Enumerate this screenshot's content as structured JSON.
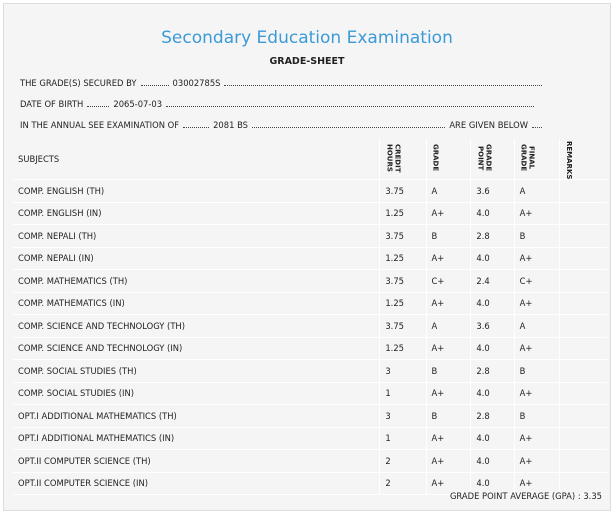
{
  "header": {
    "title": "Secondary Education Examination",
    "subtitle": "GRADE-SHEET"
  },
  "info": {
    "secured_by_label": "THE GRADE(S) SECURED BY",
    "secured_by": "03002785S",
    "dob_label": "DATE OF BIRTH",
    "dob": "2065-07-03",
    "exam_label": "IN THE ANNUAL SEE EXAMINATION OF",
    "exam_year": "2081 BS",
    "exam_suffix": "ARE GIVEN BELOW"
  },
  "table": {
    "columns": [
      "SUBJECTS",
      "CREDIT HOURS",
      "GRADE",
      "GRADE POINT",
      "FINAL GRADE",
      "REMARKS"
    ],
    "rows": [
      [
        "COMP. ENGLISH (TH)",
        "3.75",
        "A",
        "3.6",
        "A"
      ],
      [
        "COMP. ENGLISH (IN)",
        "1.25",
        "A+",
        "4.0",
        "A+"
      ],
      [
        "COMP. NEPALI (TH)",
        "3.75",
        "B",
        "2.8",
        "B"
      ],
      [
        "COMP. NEPALI (IN)",
        "1.25",
        "A+",
        "4.0",
        "A+"
      ],
      [
        "COMP. MATHEMATICS (TH)",
        "3.75",
        "C+",
        "2.4",
        "C+"
      ],
      [
        "COMP. MATHEMATICS (IN)",
        "1.25",
        "A+",
        "4.0",
        "A+"
      ],
      [
        "COMP. SCIENCE AND TECHNOLOGY (TH)",
        "3.75",
        "A",
        "3.6",
        "A"
      ],
      [
        "COMP. SCIENCE AND TECHNOLOGY (IN)",
        "1.25",
        "A+",
        "4.0",
        "A+"
      ],
      [
        "COMP. SOCIAL STUDIES (TH)",
        "3",
        "B",
        "2.8",
        "B"
      ],
      [
        "COMP. SOCIAL STUDIES (IN)",
        "1",
        "A+",
        "4.0",
        "A+"
      ],
      [
        "OPT.I ADDITIONAL MATHEMATICS (TH)",
        "3",
        "B",
        "2.8",
        "B"
      ],
      [
        "OPT.I ADDITIONAL MATHEMATICS (IN)",
        "1",
        "A+",
        "4.0",
        "A+"
      ],
      [
        "OPT.II COMPUTER SCIENCE (TH)",
        "2",
        "A+",
        "4.0",
        "A+"
      ],
      [
        "OPT.II COMPUTER SCIENCE (IN)",
        "2",
        "A+",
        "4.0",
        "A+"
      ]
    ]
  },
  "footer": {
    "gpa_label": "GRADE POINT AVERAGE (GPA) :",
    "gpa": "3.35"
  }
}
